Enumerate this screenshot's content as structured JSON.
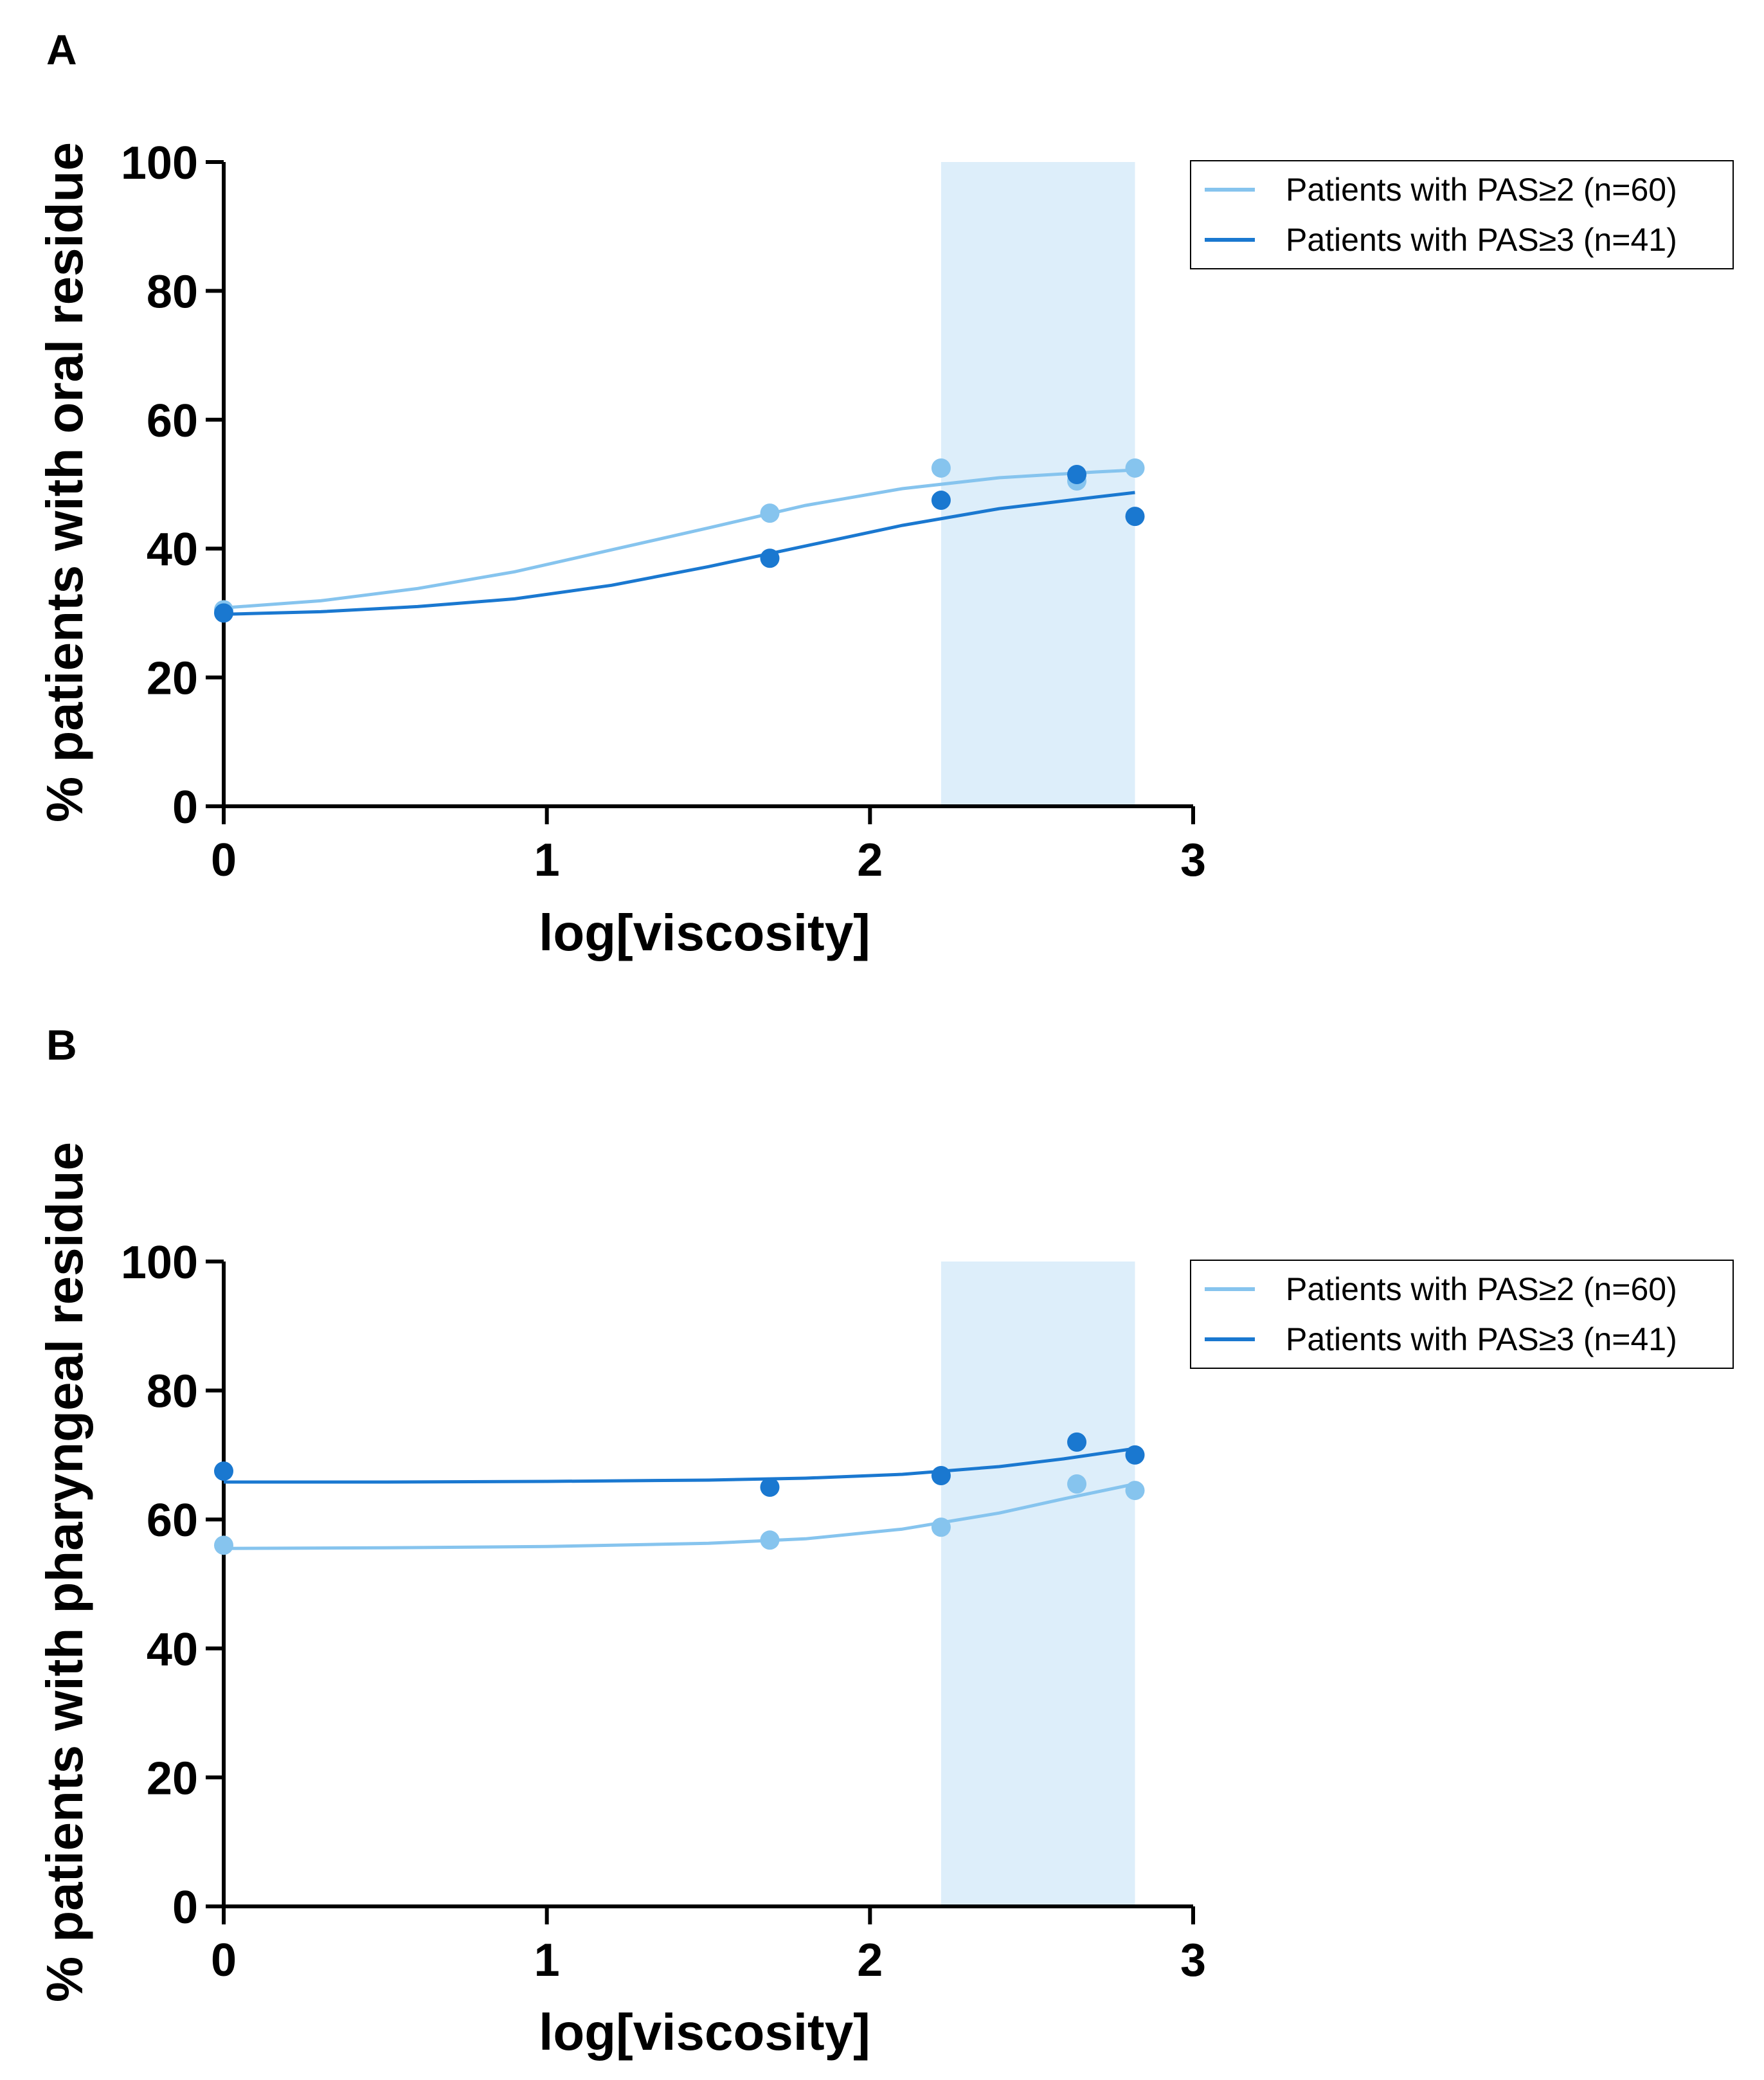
{
  "chart_data": [
    {
      "panel": "A",
      "type": "line",
      "xlabel": "log[viscosity]",
      "ylabel": "% patients with oral residue",
      "xlim": [
        0,
        3
      ],
      "ylim": [
        0,
        100
      ],
      "xticks": [
        "0",
        "1",
        "2",
        "3"
      ],
      "yticks": [
        "0",
        "20",
        "40",
        "60",
        "80",
        "100"
      ],
      "shaded_region": [
        2.22,
        2.82
      ],
      "series": [
        {
          "name": "Patients with PAS≥2 (n=60)",
          "color": "#86c4ee",
          "points": {
            "x": [
              0,
              1.69,
              2.22,
              2.64,
              2.82
            ],
            "y": [
              30.5,
              45.5,
              52.5,
              50.5,
              52.5
            ]
          },
          "fit": {
            "x": [
              0,
              0.3,
              0.6,
              0.9,
              1.2,
              1.5,
              1.8,
              2.1,
              2.4,
              2.7,
              2.82
            ],
            "y": [
              30.8,
              31.9,
              33.8,
              36.4,
              39.8,
              43.2,
              46.7,
              49.3,
              51.0,
              51.9,
              52.2
            ]
          }
        },
        {
          "name": "Patients with PAS≥3 (n=41)",
          "color": "#1a78d0",
          "points": {
            "x": [
              0,
              1.69,
              2.22,
              2.64,
              2.82
            ],
            "y": [
              30.0,
              38.5,
              47.5,
              51.5,
              45.0
            ]
          },
          "fit": {
            "x": [
              0,
              0.3,
              0.6,
              0.9,
              1.2,
              1.5,
              1.8,
              2.1,
              2.4,
              2.7,
              2.82
            ],
            "y": [
              29.8,
              30.2,
              31.0,
              32.2,
              34.3,
              37.2,
              40.4,
              43.6,
              46.2,
              48.0,
              48.7
            ]
          }
        }
      ]
    },
    {
      "panel": "B",
      "type": "line",
      "xlabel": "log[viscosity]",
      "ylabel": "% patients with pharyngeal residue",
      "xlim": [
        0,
        3
      ],
      "ylim": [
        0,
        100
      ],
      "xticks": [
        "0",
        "1",
        "2",
        "3"
      ],
      "yticks": [
        "0",
        "20",
        "40",
        "60",
        "80",
        "100"
      ],
      "shaded_region": [
        2.22,
        2.82
      ],
      "series": [
        {
          "name": "Patients with PAS≥2 (n=60)",
          "color": "#86c4ee",
          "points": {
            "x": [
              0,
              1.69,
              2.22,
              2.64,
              2.82
            ],
            "y": [
              56.0,
              56.8,
              58.8,
              65.5,
              64.5
            ]
          },
          "fit": {
            "x": [
              0,
              0.5,
              1.0,
              1.5,
              1.8,
              2.1,
              2.4,
              2.6,
              2.82
            ],
            "y": [
              55.5,
              55.6,
              55.8,
              56.3,
              57.0,
              58.5,
              61.0,
              63.2,
              65.5
            ]
          }
        },
        {
          "name": "Patients with PAS≥3 (n=41)",
          "color": "#1a78d0",
          "points": {
            "x": [
              0,
              1.69,
              2.22,
              2.64,
              2.82
            ],
            "y": [
              67.5,
              65.0,
              66.8,
              72.0,
              70.0
            ]
          },
          "fit": {
            "x": [
              0,
              0.5,
              1.0,
              1.5,
              1.8,
              2.1,
              2.4,
              2.6,
              2.82
            ],
            "y": [
              65.8,
              65.8,
              65.9,
              66.1,
              66.4,
              67.0,
              68.2,
              69.4,
              71.0
            ]
          }
        }
      ]
    }
  ]
}
